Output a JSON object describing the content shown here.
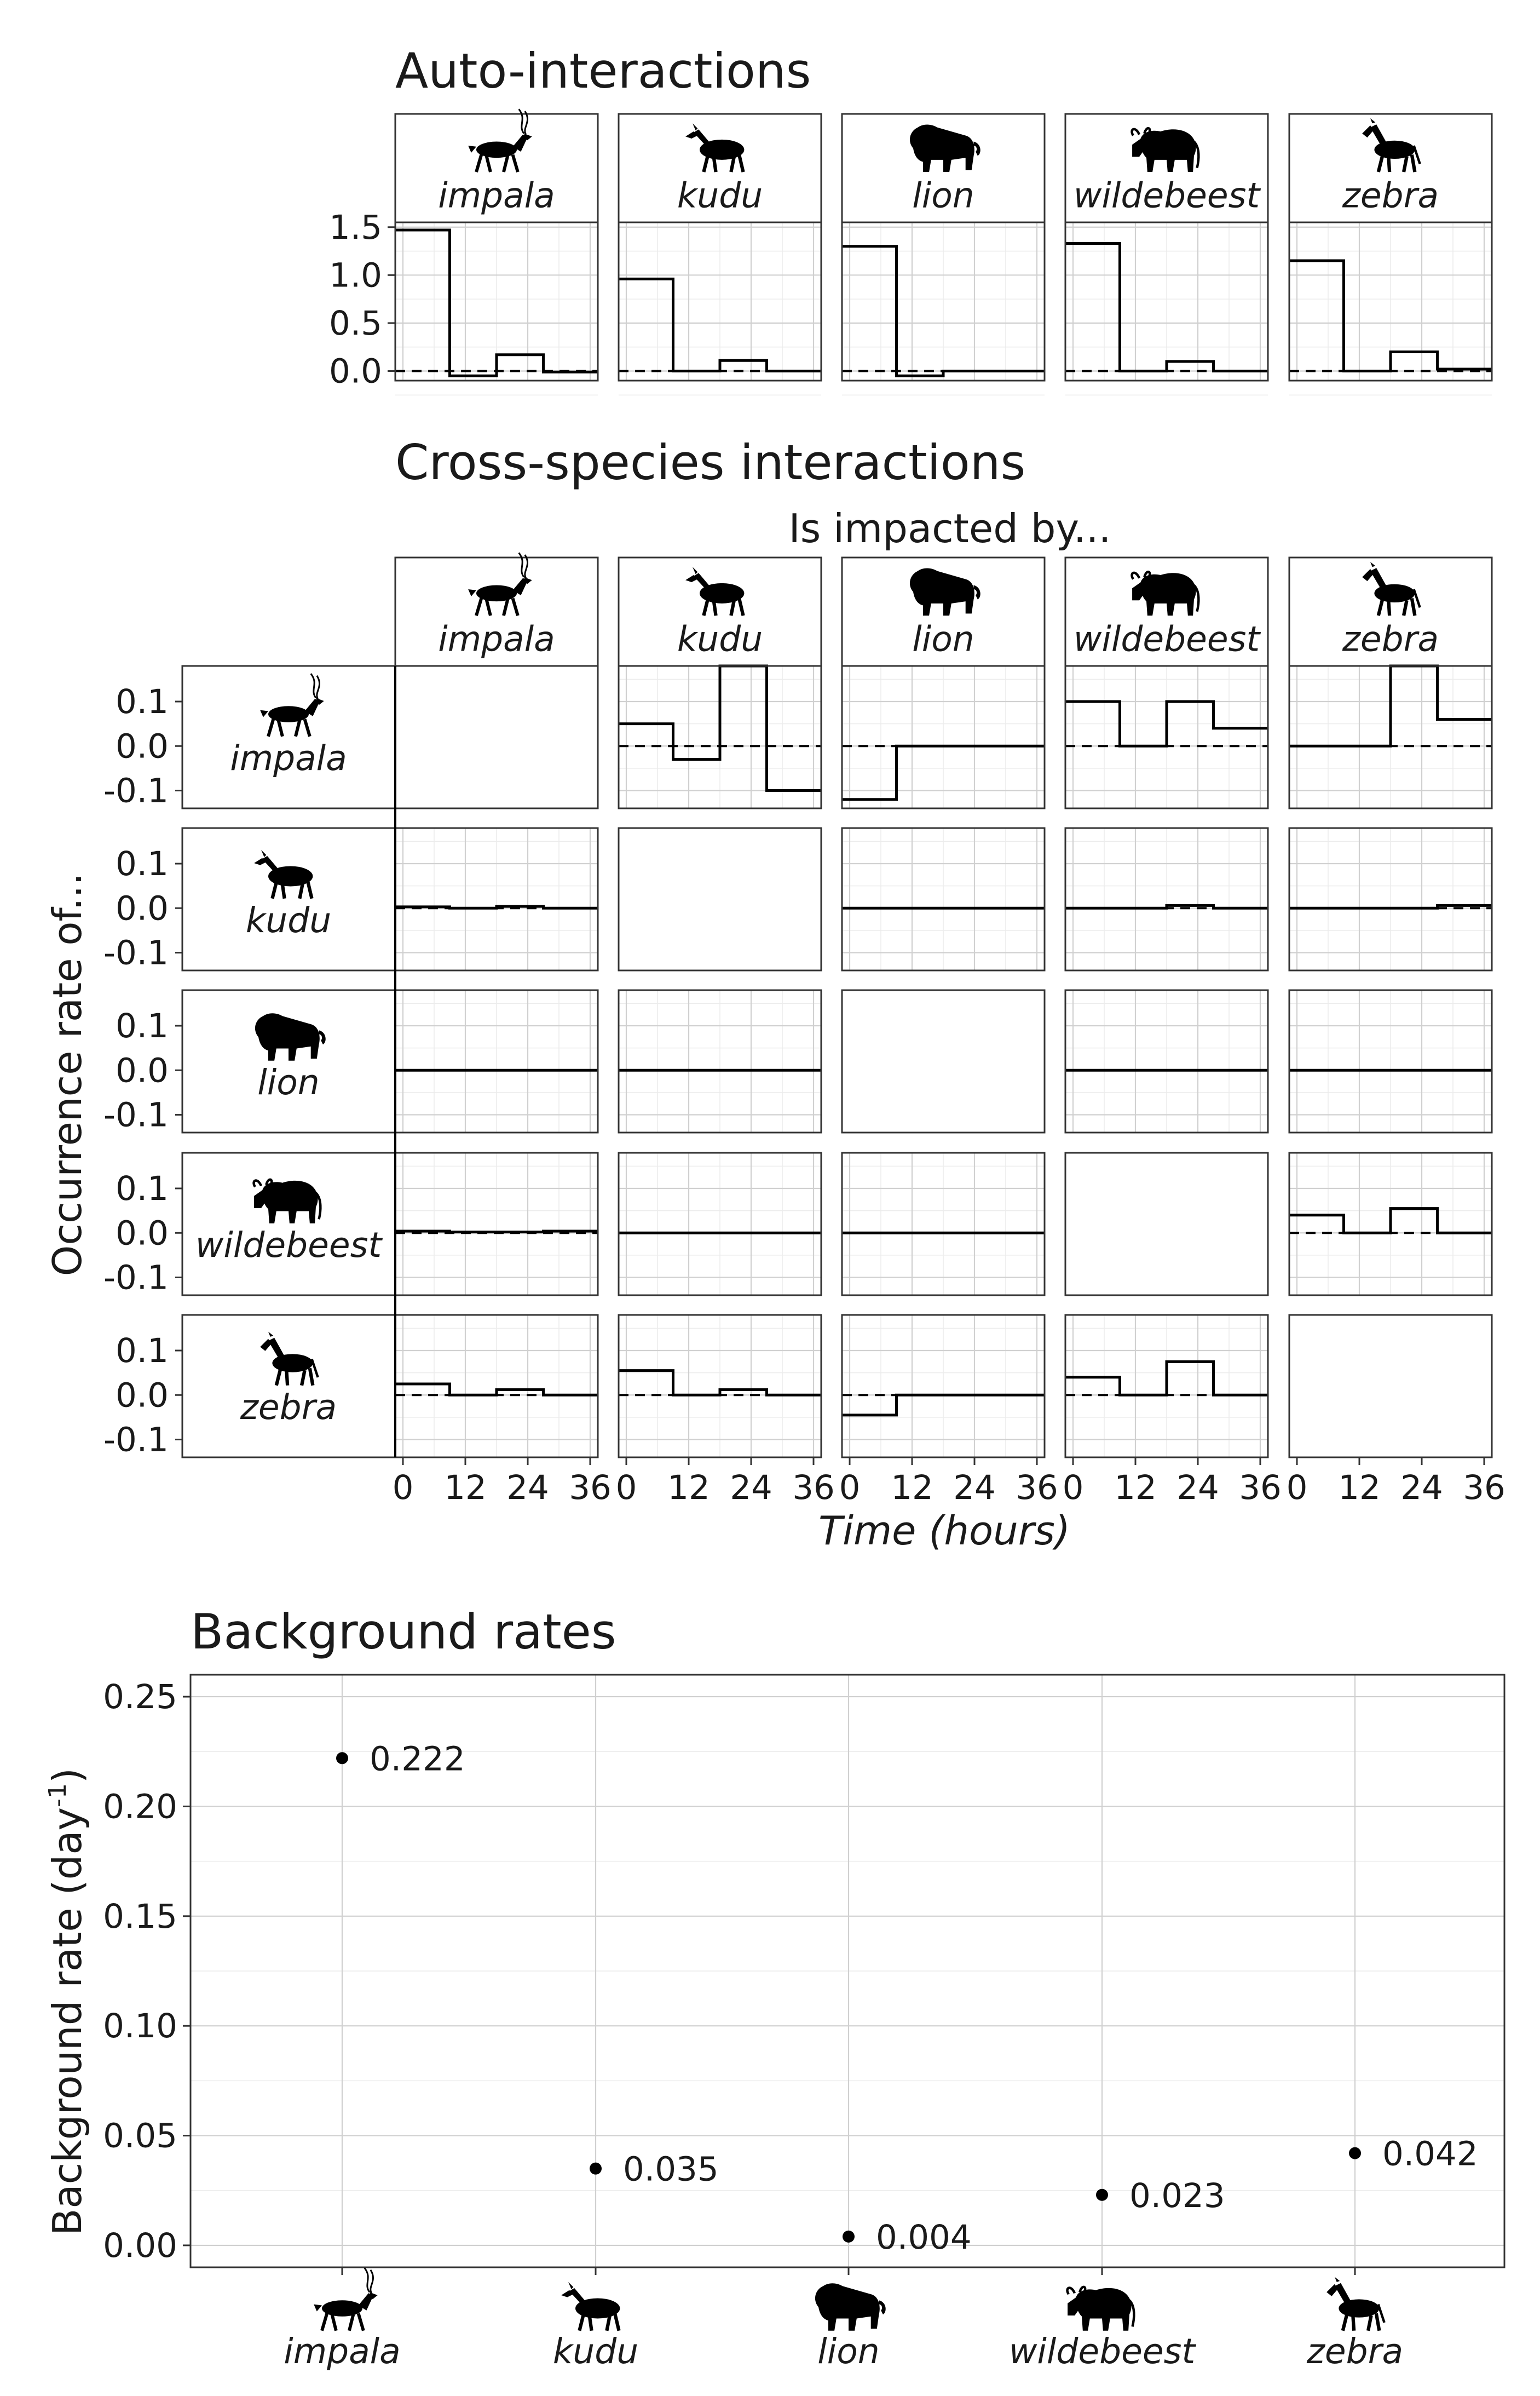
{
  "titles": {
    "auto": "Auto-interactions",
    "cross": "Cross-species interactions",
    "background": "Background rates"
  },
  "labels": {
    "impacted_by": "Is impacted by...",
    "occurrence": "Occurrence rate of...",
    "time": "Time (hours)",
    "background_y": "Background rate (day",
    "background_y_sup": "-1",
    "background_y_close": ")"
  },
  "species": [
    "impala",
    "kudu",
    "lion",
    "wildebeest",
    "zebra"
  ],
  "icons": [
    "impala-silhouette-icon",
    "kudu-silhouette-icon",
    "lion-silhouette-icon",
    "wildebeest-silhouette-icon",
    "zebra-silhouette-icon"
  ],
  "ticks": {
    "auto_y": [
      "1.5",
      "1.0",
      "0.5",
      "0.0"
    ],
    "cross_y": [
      "0.1",
      "0.0",
      "-0.1"
    ],
    "time_x": [
      "0",
      "12",
      "24",
      "36"
    ],
    "bg_y": [
      "0.25",
      "0.20",
      "0.15",
      "0.10",
      "0.05",
      "0.00"
    ]
  },
  "chart_data": [
    {
      "type": "line",
      "subtype": "step",
      "title": "Auto-interactions",
      "xlabel": "",
      "ylabel": "",
      "xlim": [
        0,
        36
      ],
      "ylim": [
        -0.1,
        1.55
      ],
      "x_breaks": [
        0,
        9,
        18,
        27,
        36
      ],
      "panels": [
        {
          "species": "impala",
          "values": [
            1.47,
            -0.05,
            0.17,
            -0.01
          ]
        },
        {
          "species": "kudu",
          "values": [
            0.96,
            0.0,
            0.11,
            0.0
          ]
        },
        {
          "species": "lion",
          "values": [
            1.3,
            -0.05,
            0.0,
            0.0
          ]
        },
        {
          "species": "wildebeest",
          "values": [
            1.33,
            0.0,
            0.1,
            0.0
          ]
        },
        {
          "species": "zebra",
          "values": [
            1.15,
            0.0,
            0.2,
            0.02
          ]
        }
      ]
    },
    {
      "type": "line",
      "subtype": "step",
      "title": "Cross-species interactions",
      "xlabel": "Time (hours)",
      "ylabel": "Occurrence rate of...",
      "column_label": "Is impacted by...",
      "xlim": [
        0,
        36
      ],
      "ylim": [
        -0.14,
        0.18
      ],
      "x_breaks": [
        0,
        9,
        18,
        27,
        36
      ],
      "panels": [
        {
          "row": "impala",
          "col": "kudu",
          "values": [
            0.05,
            -0.03,
            0.18,
            -0.1
          ]
        },
        {
          "row": "impala",
          "col": "lion",
          "values": [
            -0.12,
            0.0,
            0.0,
            0.0
          ]
        },
        {
          "row": "impala",
          "col": "wildebeest",
          "values": [
            0.1,
            0.0,
            0.1,
            0.04
          ]
        },
        {
          "row": "impala",
          "col": "zebra",
          "values": [
            0.0,
            0.0,
            0.18,
            0.06
          ]
        },
        {
          "row": "kudu",
          "col": "impala",
          "values": [
            0.003,
            0.0,
            0.004,
            0.0
          ]
        },
        {
          "row": "kudu",
          "col": "lion",
          "values": [
            0.0,
            0.0,
            0.0,
            0.0
          ]
        },
        {
          "row": "kudu",
          "col": "wildebeest",
          "values": [
            0.0,
            0.0,
            0.006,
            0.0
          ]
        },
        {
          "row": "kudu",
          "col": "zebra",
          "values": [
            0.0,
            0.0,
            0.0,
            0.006
          ]
        },
        {
          "row": "lion",
          "col": "impala",
          "values": [
            0.0,
            0.0,
            0.0,
            0.0
          ]
        },
        {
          "row": "lion",
          "col": "kudu",
          "values": [
            0.0,
            0.0,
            0.0,
            0.0
          ]
        },
        {
          "row": "lion",
          "col": "wildebeest",
          "values": [
            0.0,
            0.0,
            0.0,
            0.0
          ]
        },
        {
          "row": "lion",
          "col": "zebra",
          "values": [
            0.0,
            0.0,
            0.0,
            0.0
          ]
        },
        {
          "row": "wildebeest",
          "col": "impala",
          "values": [
            0.004,
            0.002,
            0.002,
            0.004
          ]
        },
        {
          "row": "wildebeest",
          "col": "kudu",
          "values": [
            0.0,
            0.0,
            0.0,
            0.0
          ]
        },
        {
          "row": "wildebeest",
          "col": "lion",
          "values": [
            0.0,
            0.0,
            0.0,
            0.0
          ]
        },
        {
          "row": "wildebeest",
          "col": "zebra",
          "values": [
            0.04,
            0.0,
            0.055,
            0.0
          ]
        },
        {
          "row": "zebra",
          "col": "impala",
          "values": [
            0.025,
            0.0,
            0.012,
            0.0
          ]
        },
        {
          "row": "zebra",
          "col": "kudu",
          "values": [
            0.055,
            0.0,
            0.012,
            0.0
          ]
        },
        {
          "row": "zebra",
          "col": "lion",
          "values": [
            -0.045,
            0.0,
            0.0,
            0.0
          ]
        },
        {
          "row": "zebra",
          "col": "wildebeest",
          "values": [
            0.04,
            0.0,
            0.075,
            0.0
          ]
        }
      ]
    },
    {
      "type": "scatter",
      "title": "Background rates",
      "xlabel": "",
      "ylabel": "Background rate (day-1)",
      "categories": [
        "impala",
        "kudu",
        "lion",
        "wildebeest",
        "zebra"
      ],
      "values": [
        0.222,
        0.035,
        0.004,
        0.023,
        0.042
      ],
      "data_labels": [
        "0.222",
        "0.035",
        "0.004",
        "0.023",
        "0.042"
      ],
      "ylim": [
        -0.01,
        0.26
      ]
    }
  ]
}
